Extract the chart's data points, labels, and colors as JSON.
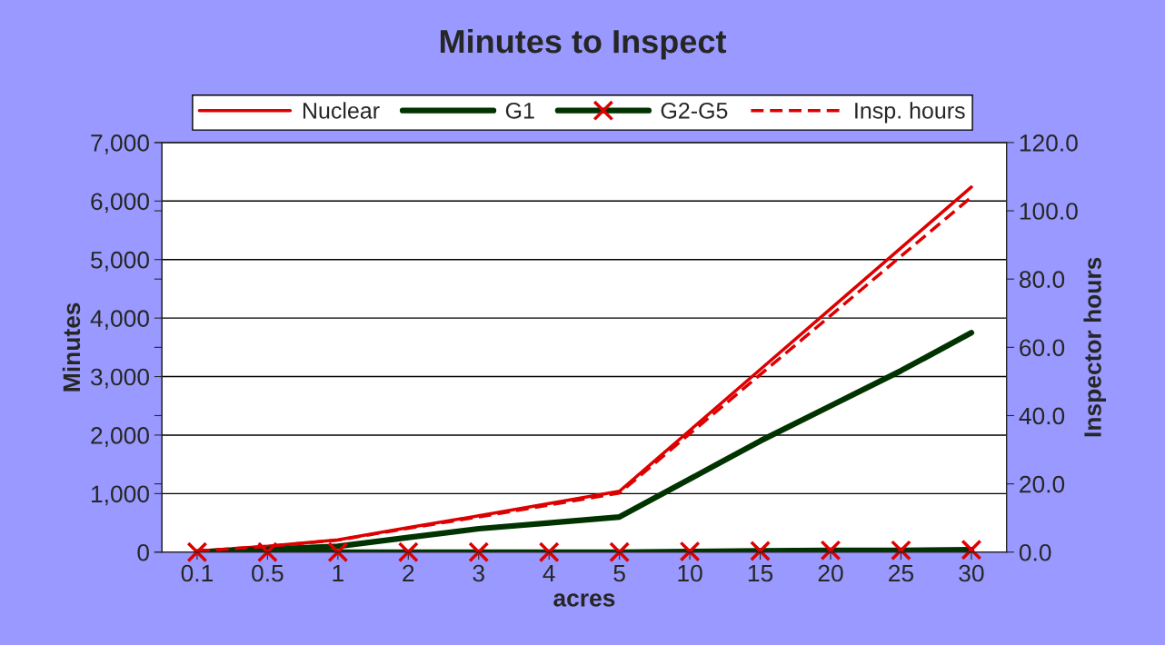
{
  "chart_data": {
    "type": "line",
    "title": "Minutes to Inspect",
    "xlabel": "acres",
    "ylabel": "Minutes",
    "y2label": "Inspector hours",
    "categories": [
      "0.1",
      "0.5",
      "1",
      "2",
      "3",
      "4",
      "5",
      "10",
      "15",
      "20",
      "25",
      "30"
    ],
    "series": [
      {
        "name": "Nuclear",
        "color": "#dd0000",
        "values": [
          20,
          100,
          210,
          420,
          620,
          830,
          1040,
          2080,
          3120,
          4160,
          5200,
          6240
        ]
      },
      {
        "name": "G1",
        "color": "#003300",
        "values": [
          0,
          50,
          100,
          250,
          400,
          500,
          600,
          1250,
          1900,
          2500,
          3100,
          3750
        ]
      },
      {
        "name": "G2-G5",
        "color": "#003300",
        "marker": "cross",
        "colors": [
          "#dd0000",
          "#dd0000",
          "#dd0000",
          "#dd0000",
          "#dd0000",
          "#dd0000",
          "#dd0000",
          "#dd0000",
          "#dd0000",
          "#dd0000",
          "#dd0000",
          "#dd0000"
        ],
        "values": [
          0,
          0,
          0,
          0,
          0,
          0,
          0,
          10,
          20,
          30,
          30,
          40
        ]
      },
      {
        "name": "Insp. hours",
        "color": "#dd0000",
        "axis": "y2",
        "line_style": "dashed",
        "values": [
          0.3,
          1.7,
          3.5,
          7.0,
          10.3,
          13.8,
          17.3,
          34.7,
          52.0,
          69.3,
          86.7,
          104.0
        ]
      }
    ],
    "ylim": [
      0,
      7000
    ],
    "yticks": [
      {
        "value": 0,
        "label": "0"
      },
      {
        "value": 1000,
        "label": "1,000"
      },
      {
        "value": 2000,
        "label": "2,000"
      },
      {
        "value": 3000,
        "label": "3,000"
      },
      {
        "value": 4000,
        "label": "4,000"
      },
      {
        "value": 5000,
        "label": "5,000"
      },
      {
        "value": 6000,
        "label": "6,000"
      },
      {
        "value": 7000,
        "label": "7,000"
      }
    ],
    "y2lim": [
      0,
      120
    ],
    "y2ticks": [
      {
        "value": 0,
        "label": "0.0"
      },
      {
        "value": 20,
        "label": "20.0"
      },
      {
        "value": 40,
        "label": "40.0"
      },
      {
        "value": 60,
        "label": "60.0"
      },
      {
        "value": 80,
        "label": "80.0"
      },
      {
        "value": 100,
        "label": "100.0"
      },
      {
        "value": 120,
        "label": "120.0"
      }
    ],
    "grid": "y",
    "legend": "top"
  }
}
